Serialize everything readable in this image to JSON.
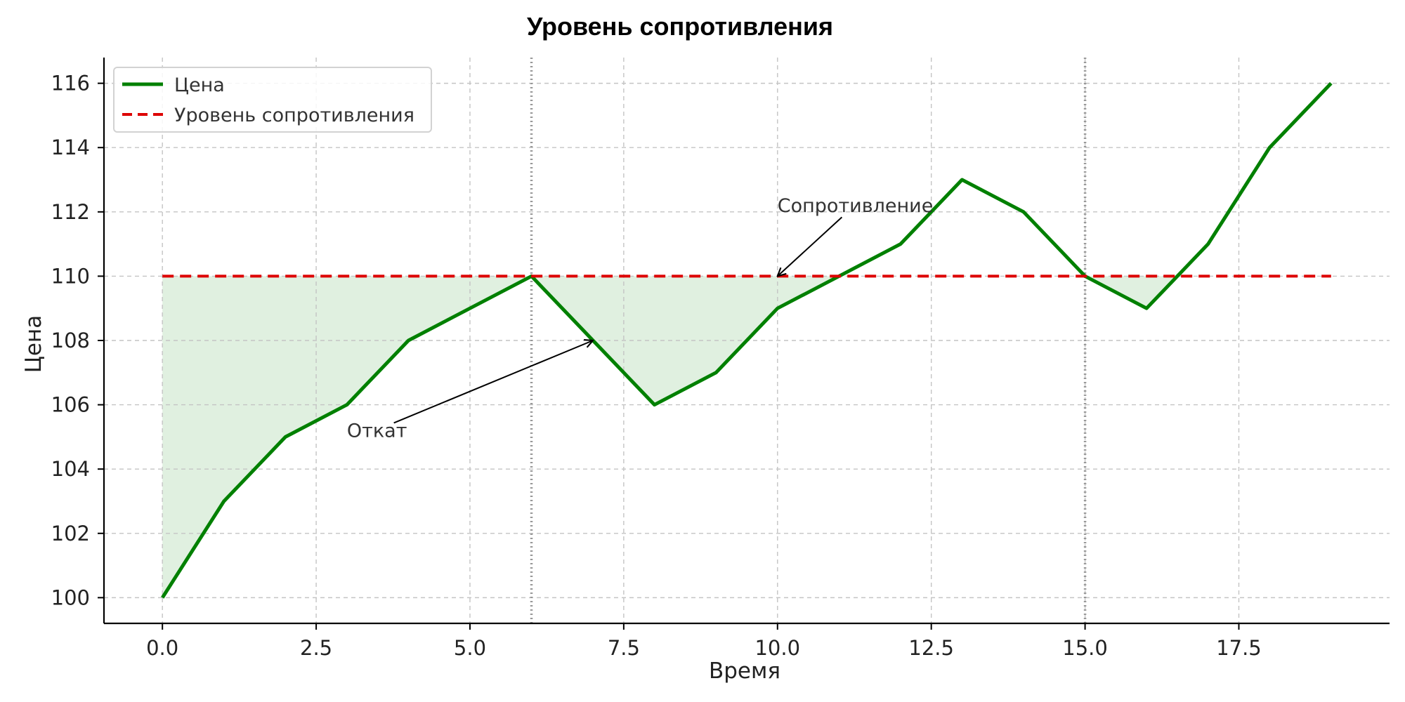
{
  "chart_data": {
    "type": "line",
    "title": "Уровень сопротивления",
    "xlabel": "Время",
    "ylabel": "Цена",
    "xlim": [
      -0.95,
      19.95
    ],
    "ylim": [
      99.2,
      116.8
    ],
    "x_ticks": [
      0.0,
      2.5,
      5.0,
      7.5,
      10.0,
      12.5,
      15.0,
      17.5
    ],
    "x_tick_labels": [
      "0.0",
      "2.5",
      "5.0",
      "7.5",
      "10.0",
      "12.5",
      "15.0",
      "17.5"
    ],
    "y_ticks": [
      100,
      102,
      104,
      106,
      108,
      110,
      112,
      114,
      116
    ],
    "y_tick_labels": [
      "100",
      "102",
      "104",
      "106",
      "108",
      "110",
      "112",
      "114",
      "116"
    ],
    "grid": true,
    "legend_position": "upper left",
    "series": [
      {
        "name": "Цена",
        "color": "#008000",
        "style": "solid",
        "x": [
          0,
          1,
          2,
          3,
          4,
          5,
          6,
          7,
          8,
          9,
          10,
          11,
          12,
          13,
          14,
          15,
          16,
          17,
          18,
          19
        ],
        "y": [
          100,
          103,
          105,
          106,
          108,
          109,
          110,
          108,
          106,
          107,
          109,
          110,
          111,
          113,
          112,
          110,
          109,
          111,
          114,
          116
        ]
      },
      {
        "name": "Уровень сопротивления",
        "color": "#dd0000",
        "style": "dashed",
        "x": [
          0,
          19
        ],
        "y": [
          110,
          110
        ]
      }
    ],
    "fill_below_level": {
      "level": 110,
      "color": "#008000",
      "opacity": 0.12
    },
    "vertical_lines": [
      {
        "x": 6,
        "color": "#999999",
        "style": "dotted"
      },
      {
        "x": 15,
        "color": "#999999",
        "style": "dotted"
      }
    ],
    "annotations": [
      {
        "text": "Сопротивление",
        "text_x": 10,
        "text_y": 112,
        "arrow_x": 10,
        "arrow_y": 110
      },
      {
        "text": "Откат",
        "text_x": 3,
        "text_y": 105,
        "arrow_x": 7,
        "arrow_y": 108
      }
    ]
  }
}
